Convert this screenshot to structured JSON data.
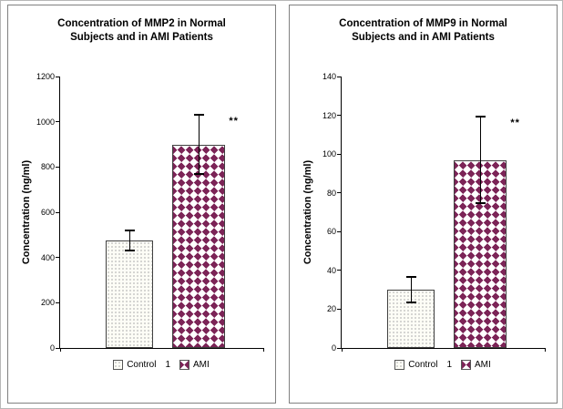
{
  "colors": {
    "ami_pattern": "#7c2457",
    "control_dots": "#b8b8b8",
    "axis": "#000000",
    "panel_border": "#808080"
  },
  "chart_data": [
    {
      "type": "bar",
      "title": "Concentration of MMP2 in Normal Subjects and in AMI Patients",
      "title_lines": [
        "Concentration of MMP2 in Normal",
        "Subjects and in AMI Patients"
      ],
      "ylabel": "Concentration (ng/ml)",
      "xlabel": "",
      "x_tick_label": "1",
      "categories": [
        "Control",
        "AMI"
      ],
      "series": [
        {
          "name": "Control",
          "value": 475,
          "error": 50,
          "pattern": "dots"
        },
        {
          "name": "AMI",
          "value": 900,
          "error": 135,
          "pattern": "diamonds"
        }
      ],
      "significance": "**",
      "ylim": [
        0,
        1200
      ],
      "yticks": [
        0,
        200,
        400,
        600,
        800,
        1000,
        1200
      ],
      "grid": false,
      "legend_position": "bottom"
    },
    {
      "type": "bar",
      "title": "Concentration of MMP9 in Normal Subjects and in AMI Patients",
      "title_lines": [
        "Concentration of MMP9 in Normal",
        "Subjects and in AMI Patients"
      ],
      "ylabel": "Concentration (ng/ml)",
      "xlabel": "",
      "x_tick_label": "1",
      "categories": [
        "Control",
        "AMI"
      ],
      "series": [
        {
          "name": "Control",
          "value": 30,
          "error": 7,
          "pattern": "dots"
        },
        {
          "name": "AMI",
          "value": 97,
          "error": 23,
          "pattern": "diamonds"
        }
      ],
      "significance": "**",
      "ylim": [
        0,
        140
      ],
      "yticks": [
        0,
        20,
        40,
        60,
        80,
        100,
        120,
        140
      ],
      "grid": false,
      "legend_position": "bottom"
    }
  ]
}
